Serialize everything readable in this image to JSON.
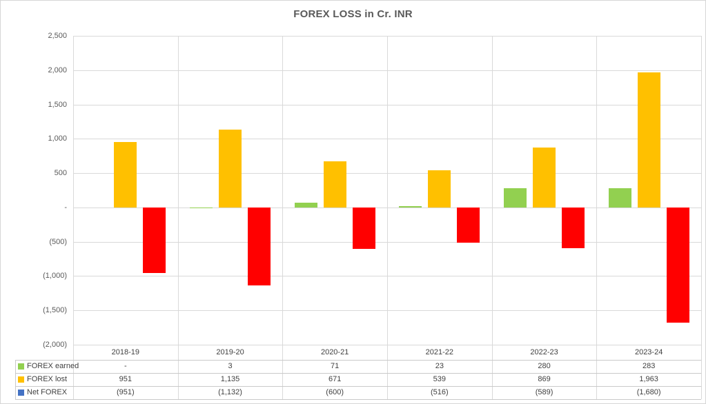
{
  "title": "FOREX LOSS in Cr. INR",
  "chart_data": {
    "type": "bar",
    "title": "FOREX LOSS in Cr. INR",
    "categories": [
      "2018-19",
      "2019-20",
      "2020-21",
      "2021-22",
      "2022-23",
      "2023-24"
    ],
    "series": [
      {
        "name": "FOREX earned",
        "bar_color": "#92D050",
        "legend_color": "#92D050",
        "values": [
          0,
          3,
          71,
          23,
          280,
          283
        ],
        "display_values": [
          "-",
          "3",
          "71",
          "23",
          "280",
          "283"
        ]
      },
      {
        "name": "FOREX lost",
        "bar_color": "#FFC000",
        "legend_color": "#FFC000",
        "values": [
          951,
          1135,
          671,
          539,
          869,
          1963
        ],
        "display_values": [
          "951",
          "1,135",
          "671",
          "539",
          "869",
          "1,963"
        ]
      },
      {
        "name": "Net FOREX",
        "bar_color": "#FF0000",
        "legend_color": "#4472C4",
        "values": [
          -951,
          -1132,
          -600,
          -516,
          -589,
          -1680
        ],
        "display_values": [
          "(951)",
          "(1,132)",
          "(600)",
          "(516)",
          "(589)",
          "(1,680)"
        ]
      }
    ],
    "y_axis": {
      "min": -2000,
      "max": 2500,
      "step": 500,
      "tick_labels": [
        "2,500",
        "2,000",
        "1,500",
        "1,000",
        "500",
        "-",
        "(500)",
        "(1,000)",
        "(1,500)",
        "(2,000)"
      ]
    },
    "grid": true,
    "legend_position": "data-table-left",
    "colors": {
      "gridline": "#D9D9D9",
      "text": "#404040",
      "axis_text": "#595959"
    }
  }
}
